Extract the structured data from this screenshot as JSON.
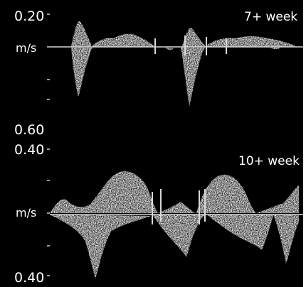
{
  "top_panel": {
    "scale_top_label": "0.20",
    "unit_label": "m/s",
    "scale_bottom_label": "0.60",
    "week_label": "7+ week"
  },
  "bottom_panel": {
    "scale_top_label": "0.40",
    "unit_label": "m/s",
    "scale_bottom_label": "0.40",
    "week_label": "10+ week"
  },
  "colors": {
    "background": "#000000",
    "signal": "#ffffff",
    "baseline": "#d8d8d8",
    "border": "#ffffff"
  }
}
